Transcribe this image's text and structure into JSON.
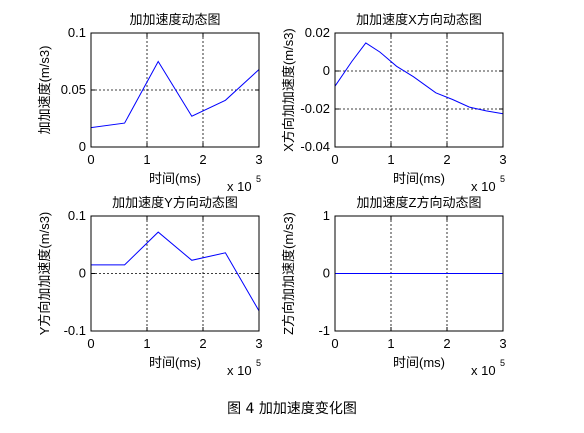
{
  "figure": {
    "caption": "图 4  加加速度变化图"
  },
  "chart_data": [
    {
      "type": "line",
      "title": "加加速度动态图",
      "xlabel": "时间(ms)",
      "ylabel": "加加速度(m/s3)",
      "x_multiplier": "x 10",
      "x_exponent": "5",
      "xlim": [
        0,
        3
      ],
      "ylim": [
        0,
        0.1
      ],
      "xticks": [
        0,
        1,
        2,
        3
      ],
      "xticklabels": [
        "0",
        "1",
        "2",
        "3"
      ],
      "yticks": [
        0,
        0.05,
        0.1
      ],
      "yticklabels": [
        "0",
        "0.05",
        "0.1"
      ],
      "grid": true,
      "series": [
        {
          "color": "#0000ff",
          "x": [
            0,
            0.6,
            1.2,
            1.8,
            2.4,
            3.0
          ],
          "y": [
            0.017,
            0.021,
            0.075,
            0.027,
            0.041,
            0.068
          ]
        }
      ]
    },
    {
      "type": "line",
      "title": "加加速度X方向动态图",
      "xlabel": "时间(ms)",
      "ylabel": "X方向加加速度(m/s3)",
      "x_multiplier": "x 10",
      "x_exponent": "5",
      "xlim": [
        0,
        3
      ],
      "ylim": [
        -0.04,
        0.02
      ],
      "xticks": [
        0,
        1,
        2,
        3
      ],
      "xticklabels": [
        "0",
        "1",
        "2",
        "3"
      ],
      "yticks": [
        -0.04,
        -0.02,
        0,
        0.02
      ],
      "yticklabels": [
        "-0.04",
        "-0.02",
        "0",
        "0.02"
      ],
      "grid": true,
      "series": [
        {
          "color": "#0000ff",
          "x": [
            0,
            0.3,
            0.55,
            0.8,
            1.1,
            1.4,
            1.8,
            2.1,
            2.4,
            2.7,
            3.0
          ],
          "y": [
            -0.008,
            0.005,
            0.0148,
            0.01,
            0.0025,
            -0.003,
            -0.0115,
            -0.015,
            -0.019,
            -0.021,
            -0.0225
          ]
        }
      ]
    },
    {
      "type": "line",
      "title": "加加速度Y方向动态图",
      "xlabel": "时间(ms)",
      "ylabel": "Y方向加加速度(m/s3)",
      "x_multiplier": "x 10",
      "x_exponent": "5",
      "xlim": [
        0,
        3
      ],
      "ylim": [
        -0.1,
        0.1
      ],
      "xticks": [
        0,
        1,
        2,
        3
      ],
      "xticklabels": [
        "0",
        "1",
        "2",
        "3"
      ],
      "yticks": [
        -0.1,
        0,
        0.1
      ],
      "yticklabels": [
        "-0.1",
        "0",
        "0.1"
      ],
      "grid": true,
      "series": [
        {
          "color": "#0000ff",
          "x": [
            0,
            0.6,
            1.2,
            1.8,
            2.4,
            3.0
          ],
          "y": [
            0.015,
            0.015,
            0.072,
            0.023,
            0.036,
            -0.065
          ]
        }
      ]
    },
    {
      "type": "line",
      "title": "加加速度Z方向动态图",
      "xlabel": "时间(ms)",
      "ylabel": "Z方向加加速度(m/s3)",
      "x_multiplier": "x 10",
      "x_exponent": "5",
      "xlim": [
        0,
        3
      ],
      "ylim": [
        -1,
        1
      ],
      "xticks": [
        0,
        1,
        2,
        3
      ],
      "xticklabels": [
        "0",
        "1",
        "2",
        "3"
      ],
      "yticks": [
        -1,
        0,
        1
      ],
      "yticklabels": [
        "-1",
        "0",
        "1"
      ],
      "grid": true,
      "series": [
        {
          "color": "#0000ff",
          "x": [
            0,
            3.0
          ],
          "y": [
            0,
            0
          ]
        }
      ]
    }
  ]
}
